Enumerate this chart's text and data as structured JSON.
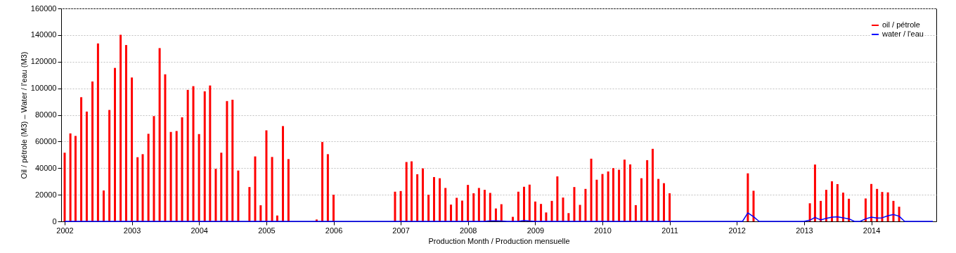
{
  "chart_data": {
    "type": "bar",
    "xlabel": "Production Month / Production mensuelle",
    "ylabel": "Oil / pétrole (M3)  –  Water / l'eau (M3)",
    "x": [
      "2002-01",
      "2002-02",
      "2002-03",
      "2002-04",
      "2002-05",
      "2002-06",
      "2002-07",
      "2002-08",
      "2002-09",
      "2002-10",
      "2002-11",
      "2002-12",
      "2003-01",
      "2003-02",
      "2003-03",
      "2003-04",
      "2003-05",
      "2003-06",
      "2003-07",
      "2003-08",
      "2003-09",
      "2003-10",
      "2003-11",
      "2003-12",
      "2004-01",
      "2004-02",
      "2004-03",
      "2004-04",
      "2004-05",
      "2004-06",
      "2004-07",
      "2004-08",
      "2004-09",
      "2004-10",
      "2004-11",
      "2004-12",
      "2005-01",
      "2005-02",
      "2005-03",
      "2005-04",
      "2005-05",
      "2005-06",
      "2005-07",
      "2005-08",
      "2005-09",
      "2005-10",
      "2005-11",
      "2005-12",
      "2006-01",
      "2006-02",
      "2006-03",
      "2006-04",
      "2006-05",
      "2006-06",
      "2006-07",
      "2006-08",
      "2006-09",
      "2006-10",
      "2006-11",
      "2006-12",
      "2007-01",
      "2007-02",
      "2007-03",
      "2007-04",
      "2007-05",
      "2007-06",
      "2007-07",
      "2007-08",
      "2007-09",
      "2007-10",
      "2007-11",
      "2007-12",
      "2008-01",
      "2008-02",
      "2008-03",
      "2008-04",
      "2008-05",
      "2008-06",
      "2008-07",
      "2008-08",
      "2008-09",
      "2008-10",
      "2008-11",
      "2008-12",
      "2009-01",
      "2009-02",
      "2009-03",
      "2009-04",
      "2009-05",
      "2009-06",
      "2009-07",
      "2009-08",
      "2009-09",
      "2009-10",
      "2009-11",
      "2009-12",
      "2010-01",
      "2010-02",
      "2010-03",
      "2010-04",
      "2010-05",
      "2010-06",
      "2010-07",
      "2010-08",
      "2010-09",
      "2010-10",
      "2010-11",
      "2010-12",
      "2011-01",
      "2011-02",
      "2011-03",
      "2011-04",
      "2011-05",
      "2011-06",
      "2011-07",
      "2011-08",
      "2011-09",
      "2011-10",
      "2011-11",
      "2011-12",
      "2012-01",
      "2012-02",
      "2012-03",
      "2012-04",
      "2012-05",
      "2012-06",
      "2012-07",
      "2012-08",
      "2012-09",
      "2012-10",
      "2012-11",
      "2012-12",
      "2013-01",
      "2013-02",
      "2013-03",
      "2013-04",
      "2013-05",
      "2013-06",
      "2013-07",
      "2013-08",
      "2013-09",
      "2013-10",
      "2013-11",
      "2013-12",
      "2014-01",
      "2014-02",
      "2014-03",
      "2014-04",
      "2014-05",
      "2014-06",
      "2014-07",
      "2014-08",
      "2014-09",
      "2014-10",
      "2014-11",
      "2014-12"
    ],
    "series": [
      {
        "name": "oil / pétrole",
        "type": "bar",
        "color": "#ff0000",
        "values": [
          51600,
          66100,
          64200,
          93300,
          82500,
          105100,
          133700,
          23200,
          83700,
          115300,
          140200,
          132500,
          108100,
          48200,
          50500,
          65800,
          79100,
          130200,
          110500,
          67200,
          67900,
          78200,
          98800,
          101600,
          65600,
          97700,
          102100,
          39500,
          51600,
          90400,
          91400,
          38200,
          0,
          25800,
          48800,
          12100,
          68400,
          48400,
          4400,
          71600,
          46800,
          null,
          0,
          0,
          0,
          1400,
          59600,
          50500,
          20000,
          0,
          0,
          0,
          0,
          0,
          0,
          0,
          0,
          0,
          0,
          22300,
          22800,
          44600,
          45100,
          35400,
          39800,
          20000,
          33300,
          32400,
          25100,
          12600,
          17700,
          15600,
          27400,
          21100,
          25100,
          23700,
          21400,
          9700,
          12900,
          0,
          3400,
          22300,
          26000,
          27600,
          14900,
          13100,
          6700,
          15400,
          33800,
          17900,
          6200,
          25800,
          12400,
          24400,
          47100,
          31300,
          35600,
          37500,
          40000,
          38800,
          46400,
          42800,
          12200,
          32400,
          46000,
          54500,
          31900,
          28700,
          21100,
          0,
          0,
          0,
          0,
          0,
          0,
          0,
          0,
          0,
          0,
          0,
          0,
          0,
          36100,
          23000,
          0,
          0,
          0,
          0,
          0,
          0,
          0,
          0,
          0,
          13600,
          42700,
          15400,
          23700,
          30100,
          28000,
          21600,
          17000,
          0,
          0,
          17200,
          28100,
          24400,
          22100,
          21800,
          15400,
          11000,
          0,
          0,
          0,
          0,
          0,
          0
        ]
      },
      {
        "name": "water / l'eau",
        "type": "line",
        "color": "#0000ff",
        "values": [
          0,
          0,
          0,
          0,
          0,
          0,
          0,
          0,
          0,
          0,
          0,
          0,
          0,
          0,
          0,
          0,
          0,
          0,
          0,
          0,
          0,
          0,
          0,
          0,
          0,
          0,
          0,
          0,
          0,
          0,
          0,
          0,
          0,
          0,
          0,
          0,
          0,
          0,
          0,
          0,
          0,
          0,
          0,
          0,
          0,
          0,
          0,
          0,
          0,
          0,
          0,
          0,
          0,
          0,
          0,
          0,
          0,
          0,
          0,
          0,
          0,
          0,
          0,
          0,
          0,
          0,
          0,
          0,
          0,
          0,
          0,
          0,
          0,
          0,
          0,
          0,
          400,
          400,
          200,
          0,
          0,
          0,
          600,
          300,
          0,
          0,
          0,
          0,
          0,
          0,
          0,
          0,
          0,
          0,
          0,
          0,
          0,
          0,
          0,
          0,
          0,
          0,
          0,
          0,
          0,
          0,
          0,
          0,
          0,
          0,
          0,
          0,
          0,
          0,
          0,
          0,
          0,
          0,
          0,
          0,
          0,
          0,
          6400,
          3500,
          0,
          0,
          0,
          0,
          0,
          0,
          0,
          0,
          0,
          900,
          3000,
          1100,
          2300,
          3200,
          3400,
          2700,
          1900,
          0,
          0,
          1900,
          3200,
          2500,
          2700,
          4200,
          5100,
          3900,
          0,
          0,
          0,
          0,
          0,
          0
        ]
      }
    ],
    "xlim": [
      "2002-01",
      "2014-12"
    ],
    "xticks": [
      "2002",
      "2003",
      "2004",
      "2005",
      "2006",
      "2007",
      "2008",
      "2009",
      "2010",
      "2011",
      "2012",
      "2013",
      "2014"
    ],
    "ylim": [
      0,
      160000
    ],
    "yticks": [
      0,
      20000,
      40000,
      60000,
      80000,
      100000,
      120000,
      140000,
      160000
    ],
    "grid": "y",
    "legend": "top right"
  }
}
